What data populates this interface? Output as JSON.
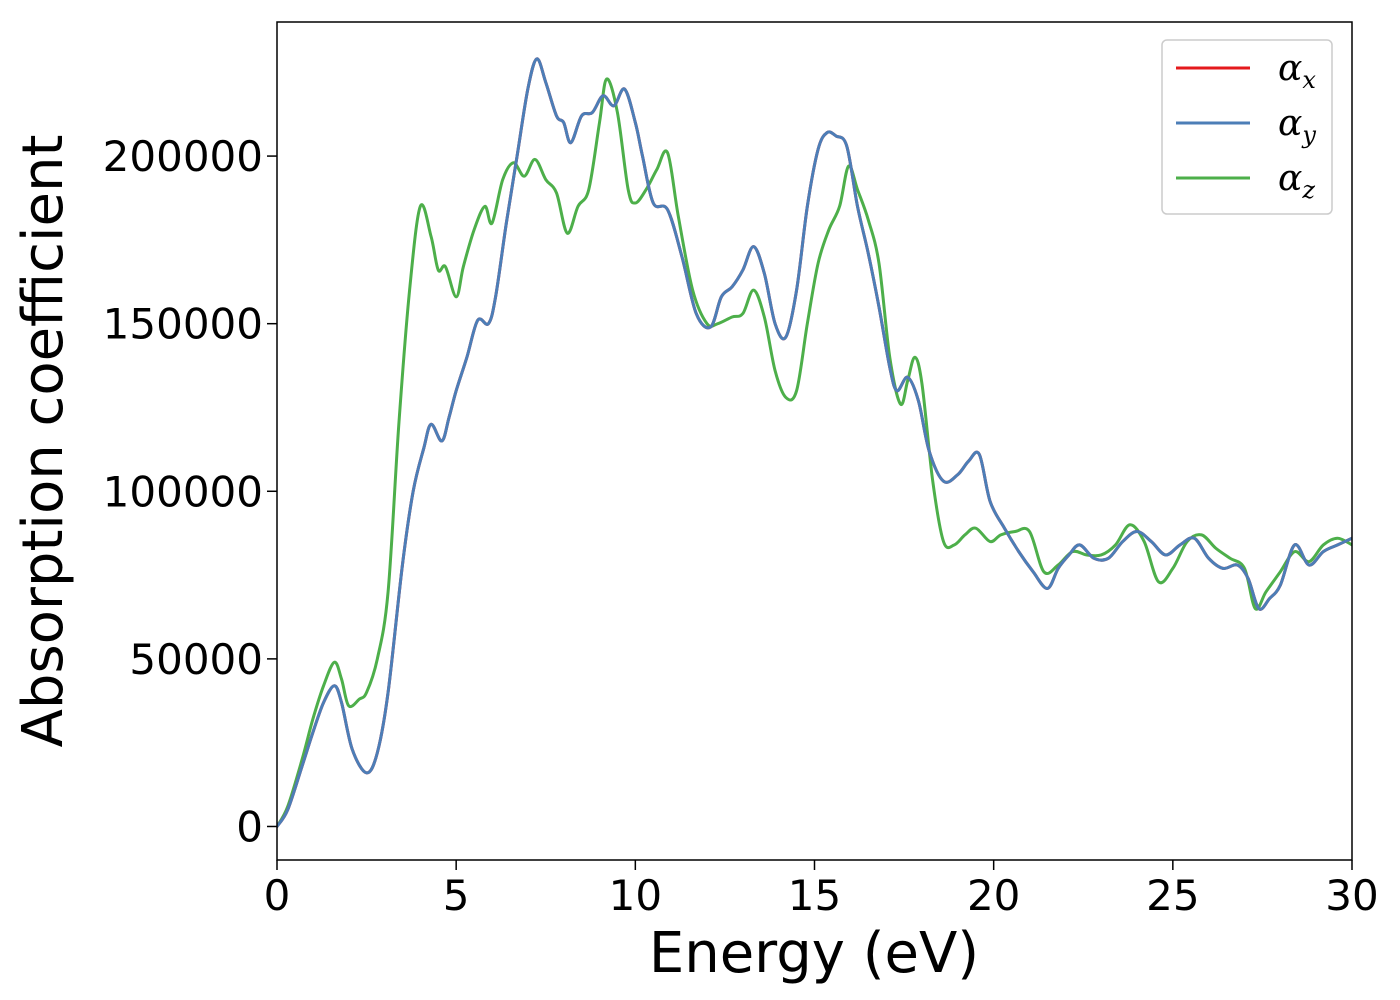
{
  "chart_data": {
    "type": "line",
    "xlabel": "Energy (eV)",
    "ylabel": "Absorption coefficient",
    "xlim": [
      0,
      30
    ],
    "ylim": [
      -10000,
      240000
    ],
    "xticks": [
      0,
      5,
      10,
      15,
      20,
      25,
      30
    ],
    "yticks": [
      0,
      50000,
      100000,
      150000,
      200000
    ],
    "grid": false,
    "legend_position": "top-right",
    "series": [
      {
        "name": "αx",
        "legend_base": "α",
        "legend_sub": "x",
        "color": "#e41a1c",
        "x": [
          0,
          0.3,
          0.7,
          1.0,
          1.3,
          1.6,
          1.8,
          2.1,
          2.5,
          2.8,
          3.1,
          3.5,
          3.8,
          4.1,
          4.3,
          4.6,
          4.8,
          5.0,
          5.3,
          5.6,
          5.9,
          6.1,
          6.4,
          6.7,
          7.0,
          7.25,
          7.5,
          7.8,
          8.0,
          8.2,
          8.5,
          8.8,
          9.1,
          9.4,
          9.7,
          10.0,
          10.2,
          10.5,
          10.9,
          11.3,
          11.7,
          12.1,
          12.4,
          12.7,
          13.0,
          13.3,
          13.6,
          13.9,
          14.2,
          14.5,
          14.8,
          15.1,
          15.35,
          15.6,
          15.9,
          16.2,
          16.5,
          16.8,
          17.1,
          17.3,
          17.6,
          17.9,
          18.2,
          18.6,
          19.0,
          19.3,
          19.6,
          19.9,
          20.3,
          20.7,
          21.1,
          21.5,
          21.8,
          22.1,
          22.4,
          22.8,
          23.2,
          23.6,
          24.0,
          24.4,
          24.8,
          25.2,
          25.6,
          26.0,
          26.4,
          26.8,
          27.1,
          27.4,
          27.7,
          28.0,
          28.4,
          28.8,
          29.2,
          29.6,
          30.0
        ],
        "y": [
          0,
          5000,
          18000,
          28000,
          37000,
          42000,
          37000,
          23000,
          16000,
          22000,
          40000,
          78000,
          100000,
          113000,
          120000,
          115000,
          122000,
          130000,
          140000,
          151000,
          150000,
          158000,
          180000,
          200000,
          220000,
          229000,
          222000,
          212000,
          210000,
          204000,
          212000,
          213000,
          218000,
          215000,
          220000,
          210000,
          200000,
          186000,
          184000,
          170000,
          153000,
          149000,
          158000,
          161000,
          166000,
          173000,
          165000,
          150000,
          146000,
          160000,
          185000,
          202000,
          207000,
          206000,
          203000,
          185000,
          171000,
          155000,
          137000,
          130000,
          134000,
          127000,
          112000,
          103000,
          105000,
          109000,
          111000,
          97000,
          89000,
          82000,
          76000,
          71000,
          77000,
          81000,
          84000,
          80000,
          80000,
          85000,
          88000,
          85000,
          81000,
          84000,
          86000,
          80000,
          77000,
          78000,
          74000,
          65000,
          68000,
          72000,
          84000,
          78000,
          82000,
          84000,
          86000
        ]
      },
      {
        "name": "αy",
        "legend_base": "α",
        "legend_sub": "y",
        "color": "#4c7eb7",
        "x": [
          0,
          0.3,
          0.7,
          1.0,
          1.3,
          1.6,
          1.8,
          2.1,
          2.5,
          2.8,
          3.1,
          3.5,
          3.8,
          4.1,
          4.3,
          4.6,
          4.8,
          5.0,
          5.3,
          5.6,
          5.9,
          6.1,
          6.4,
          6.7,
          7.0,
          7.25,
          7.5,
          7.8,
          8.0,
          8.2,
          8.5,
          8.8,
          9.1,
          9.4,
          9.7,
          10.0,
          10.2,
          10.5,
          10.9,
          11.3,
          11.7,
          12.1,
          12.4,
          12.7,
          13.0,
          13.3,
          13.6,
          13.9,
          14.2,
          14.5,
          14.8,
          15.1,
          15.35,
          15.6,
          15.9,
          16.2,
          16.5,
          16.8,
          17.1,
          17.3,
          17.6,
          17.9,
          18.2,
          18.6,
          19.0,
          19.3,
          19.6,
          19.9,
          20.3,
          20.7,
          21.1,
          21.5,
          21.8,
          22.1,
          22.4,
          22.8,
          23.2,
          23.6,
          24.0,
          24.4,
          24.8,
          25.2,
          25.6,
          26.0,
          26.4,
          26.8,
          27.1,
          27.4,
          27.7,
          28.0,
          28.4,
          28.8,
          29.2,
          29.6,
          30.0
        ],
        "y": [
          0,
          5000,
          18000,
          28000,
          37000,
          42000,
          37000,
          23000,
          16000,
          22000,
          40000,
          78000,
          100000,
          113000,
          120000,
          115000,
          122000,
          130000,
          140000,
          151000,
          150000,
          158000,
          180000,
          200000,
          220000,
          229000,
          222000,
          212000,
          210000,
          204000,
          212000,
          213000,
          218000,
          215000,
          220000,
          210000,
          200000,
          186000,
          184000,
          170000,
          153000,
          149000,
          158000,
          161000,
          166000,
          173000,
          165000,
          150000,
          146000,
          160000,
          185000,
          202000,
          207000,
          206000,
          203000,
          185000,
          171000,
          155000,
          137000,
          130000,
          134000,
          127000,
          112000,
          103000,
          105000,
          109000,
          111000,
          97000,
          89000,
          82000,
          76000,
          71000,
          77000,
          81000,
          84000,
          80000,
          80000,
          85000,
          88000,
          85000,
          81000,
          84000,
          86000,
          80000,
          77000,
          78000,
          74000,
          65000,
          68000,
          72000,
          84000,
          78000,
          82000,
          84000,
          86000
        ]
      },
      {
        "name": "αz",
        "legend_base": "α",
        "legend_sub": "z",
        "color": "#4daf4a",
        "x": [
          0,
          0.3,
          0.7,
          1.0,
          1.3,
          1.6,
          1.8,
          2.0,
          2.3,
          2.5,
          2.8,
          3.1,
          3.4,
          3.7,
          4.0,
          4.3,
          4.5,
          4.7,
          5.0,
          5.2,
          5.5,
          5.8,
          6.0,
          6.3,
          6.6,
          6.9,
          7.2,
          7.5,
          7.8,
          8.1,
          8.4,
          8.7,
          9.0,
          9.2,
          9.5,
          9.8,
          10.0,
          10.3,
          10.6,
          10.9,
          11.2,
          11.6,
          12.0,
          12.3,
          12.7,
          13.0,
          13.3,
          13.6,
          13.9,
          14.2,
          14.5,
          14.8,
          15.1,
          15.4,
          15.7,
          15.95,
          16.2,
          16.5,
          16.8,
          17.1,
          17.4,
          17.6,
          17.8,
          18.0,
          18.3,
          18.6,
          18.9,
          19.2,
          19.5,
          19.9,
          20.2,
          20.6,
          21.0,
          21.4,
          21.8,
          22.2,
          22.6,
          23.0,
          23.4,
          23.8,
          24.2,
          24.6,
          25.0,
          25.4,
          25.8,
          26.2,
          26.6,
          27.0,
          27.3,
          27.6,
          28.0,
          28.4,
          28.8,
          29.2,
          29.6,
          30.0
        ],
        "y": [
          0,
          6000,
          20000,
          32000,
          42000,
          49000,
          44000,
          36000,
          38000,
          40000,
          50000,
          70000,
          120000,
          160000,
          185000,
          176000,
          166000,
          167000,
          158000,
          167000,
          178000,
          185000,
          180000,
          193000,
          198000,
          194000,
          199000,
          193000,
          189000,
          177000,
          185000,
          190000,
          210000,
          223000,
          213000,
          190000,
          186000,
          190000,
          196000,
          201000,
          182000,
          160000,
          150000,
          150000,
          152000,
          153000,
          160000,
          152000,
          136000,
          128000,
          130000,
          150000,
          168000,
          178000,
          185000,
          197000,
          190000,
          181000,
          168000,
          140000,
          126000,
          133000,
          140000,
          132000,
          103000,
          85000,
          84000,
          87000,
          89000,
          85000,
          87000,
          88000,
          88000,
          76000,
          78000,
          82000,
          81000,
          81000,
          84000,
          90000,
          85000,
          73000,
          77000,
          85000,
          87000,
          83000,
          80000,
          77000,
          65000,
          70000,
          76000,
          82000,
          79000,
          84000,
          86000,
          84000
        ]
      }
    ]
  }
}
